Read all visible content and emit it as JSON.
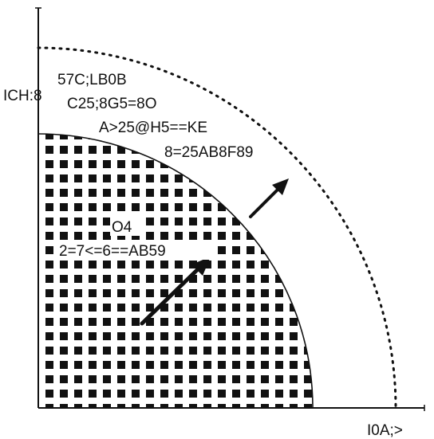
{
  "axes": {
    "y_label": "ICH:8",
    "x_label": "I0A;>"
  },
  "outer_region": {
    "lines": [
      "57C;LB0B",
      "C25;8G5=8O",
      "A>25@H5==KE",
      "8=25AB8F89"
    ]
  },
  "inner_region": {
    "lines": [
      "O4",
      "2=7<=6==AB59"
    ]
  },
  "colors": {
    "ink": "#111111",
    "background": "#ffffff"
  }
}
